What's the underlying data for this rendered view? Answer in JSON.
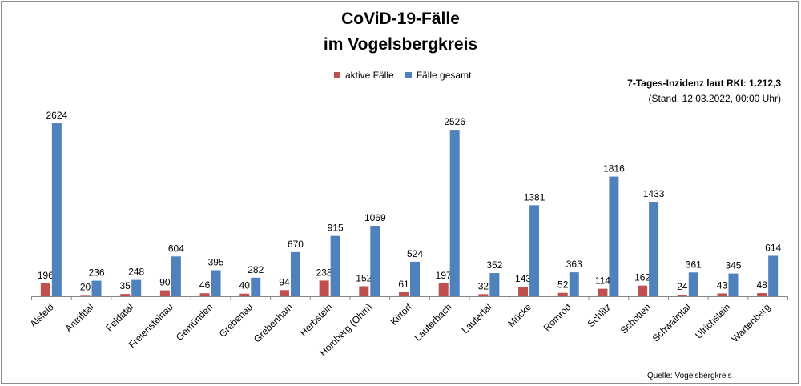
{
  "title_line1": "CoViD-19-Fälle",
  "title_line2": "im Vogelsbergkreis",
  "inzidenz_text": "7-Tages-Inzidenz laut RKI: 1.212,3",
  "stand_text": "(Stand: 12.03.2022, 00:00 Uhr)",
  "source_text": "Quelle: Vogelsbergkreis",
  "chart_data": {
    "type": "bar",
    "title": "CoViD-19-Fälle im Vogelsbergkreis",
    "legend_position": "top",
    "grid": false,
    "ylim": [
      0,
      2800
    ],
    "categories": [
      "Alsfeld",
      "Antrifttal",
      "Feldatal",
      "Freiensteinau",
      "Gemünden",
      "Grebenau",
      "Grebenhain",
      "Herbstein",
      "Homberg (Ohm)",
      "Kirtorf",
      "Lauterbach",
      "Lautertal",
      "Mücke",
      "Romrod",
      "Schlitz",
      "Schotten",
      "Schwalmtal",
      "Ulrichstein",
      "Wartenberg"
    ],
    "series": [
      {
        "name": "aktive Fälle",
        "color": "#c0504d",
        "values": [
          196,
          20,
          35,
          90,
          46,
          40,
          94,
          238,
          152,
          61,
          197,
          32,
          143,
          52,
          114,
          162,
          24,
          43,
          48
        ]
      },
      {
        "name": "Fälle gesamt",
        "color": "#4f81bd",
        "values": [
          2624,
          236,
          248,
          604,
          395,
          282,
          670,
          915,
          1069,
          524,
          2526,
          352,
          1381,
          363,
          1816,
          1433,
          361,
          345,
          614
        ]
      }
    ]
  }
}
